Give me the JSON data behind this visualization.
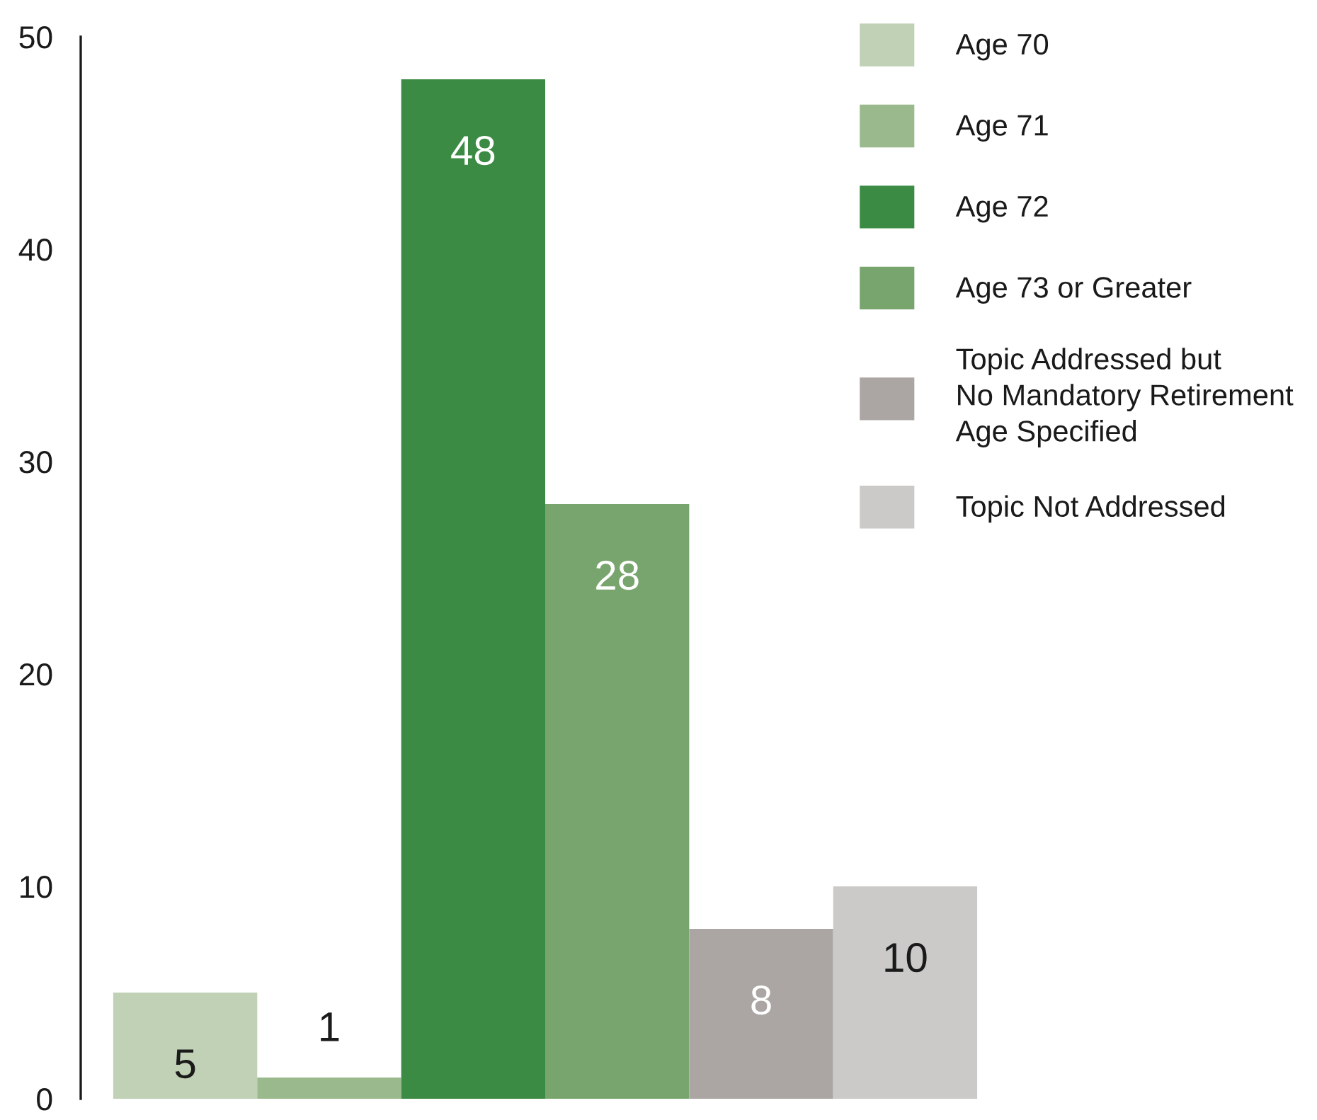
{
  "chart_data": {
    "type": "bar",
    "categories": [
      null
    ],
    "series": [
      {
        "name": "Age 70",
        "color": "#c0d1b5",
        "values": [
          5
        ]
      },
      {
        "name": "Age 71",
        "color": "#9aba8d",
        "values": [
          1
        ]
      },
      {
        "name": "Age 72",
        "color": "#3c8b45",
        "values": [
          48
        ]
      },
      {
        "name": "Age 73 or Greater",
        "color": "#78a56d",
        "values": [
          28
        ]
      },
      {
        "name": "Topic Addressed but\nNo Mandatory Retirement\nAge Specified",
        "color": "#aba6a3",
        "values": [
          8
        ]
      },
      {
        "name": "Topic Not Addressed",
        "color": "#cbcac9",
        "values": [
          10
        ]
      }
    ],
    "ylim": [
      0,
      50
    ],
    "yticks": [
      0,
      10,
      20,
      30,
      40,
      50
    ],
    "tick_labels": "y",
    "data_labels": true,
    "legend": "top right"
  }
}
